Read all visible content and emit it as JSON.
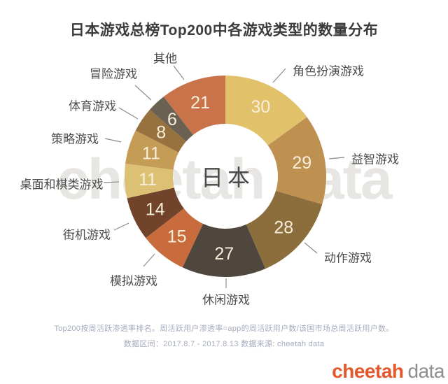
{
  "title": "日本游戏总榜Top200中各游戏类型的数量分布",
  "watermark": "cheetah data",
  "center_label": "日本",
  "footnote": {
    "line1": "Top200按周活跃渗透率排名。周活跃用户渗透率=app的周活跃用户数/该国市场总周活跃用户数。",
    "line2": "数据区间：2017.8.7 - 2017.8.13 数据来源: cheetah data"
  },
  "logo": {
    "brand": "cheetah",
    "suffix": "data",
    "brand_color": "#E3572B",
    "suffix_color": "#8E8E8E"
  },
  "chart_data": {
    "type": "pie",
    "variant": "donut",
    "title": "日本游戏总榜Top200中各游戏类型的数量分布",
    "center_label": "日本",
    "total": 200,
    "start_angle_deg": 0,
    "direction": "clockwise",
    "value_text_color": "#F7EFDA",
    "segments": [
      {
        "label": "角色扮演游戏",
        "value": 30,
        "color": "#E2C16B"
      },
      {
        "label": "益智游戏",
        "value": 29,
        "color": "#BF9150"
      },
      {
        "label": "动作游戏",
        "value": 28,
        "color": "#8C6D3C"
      },
      {
        "label": "休闲游戏",
        "value": 27,
        "color": "#4F473E"
      },
      {
        "label": "模拟游戏",
        "value": 15,
        "color": "#C96C3D"
      },
      {
        "label": "街机游戏",
        "value": 14,
        "color": "#70432A"
      },
      {
        "label": "桌面和棋类游戏",
        "value": 11,
        "color": "#DCC073"
      },
      {
        "label": "策略游戏",
        "value": 11,
        "color": "#C59C55"
      },
      {
        "label": "体育游戏",
        "value": 8,
        "color": "#97713E"
      },
      {
        "label": "冒险游戏",
        "value": 6,
        "color": "#6B6152"
      },
      {
        "label": "其他",
        "value": 21,
        "color": "#C9734B"
      }
    ]
  }
}
